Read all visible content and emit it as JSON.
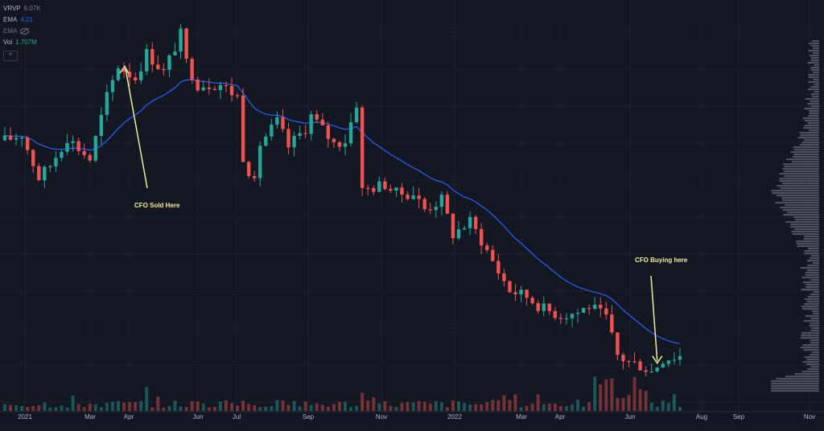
{
  "legend": [
    {
      "name": "VRVP",
      "value": "6.07K"
    },
    {
      "name": "EMA",
      "value": "4.21"
    },
    {
      "name": "EMA",
      "value": ""
    },
    {
      "name": "Vol",
      "value": "1.707M"
    }
  ],
  "colors": {
    "background": "#131722",
    "grid": "#1e222d",
    "up": "#26a69a",
    "down": "#ef5350",
    "ema": "#2962ff",
    "profile": "#9598a1",
    "annotation": "#f0ee9c"
  },
  "chart_data": {
    "type": "candlestick",
    "x_ticks": [
      "2021",
      "Mar",
      "Apr",
      "Jun",
      "Jul",
      "Sep",
      "Nov",
      "2022",
      "Mar",
      "Apr",
      "Jun",
      "Aug",
      "Sep",
      "Nov"
    ],
    "price_waypoints": [
      [
        0,
        74
      ],
      [
        3,
        76
      ],
      [
        6,
        62
      ],
      [
        8,
        66
      ],
      [
        11,
        75
      ],
      [
        15,
        68
      ],
      [
        18,
        88
      ],
      [
        20,
        98
      ],
      [
        23,
        94
      ],
      [
        25,
        102
      ],
      [
        28,
        96
      ],
      [
        31,
        108
      ],
      [
        32,
        99
      ],
      [
        34,
        92
      ],
      [
        38,
        92
      ],
      [
        41,
        88
      ],
      [
        42,
        69
      ],
      [
        44,
        60
      ],
      [
        45,
        73
      ],
      [
        48,
        80
      ],
      [
        50,
        72
      ],
      [
        53,
        78
      ],
      [
        54,
        82
      ],
      [
        58,
        73
      ],
      [
        60,
        74
      ],
      [
        62,
        86
      ],
      [
        63,
        58
      ],
      [
        67,
        60
      ],
      [
        69,
        57
      ],
      [
        72,
        57
      ],
      [
        74,
        52
      ],
      [
        77,
        55
      ],
      [
        79,
        44
      ],
      [
        82,
        48
      ],
      [
        84,
        42
      ],
      [
        87,
        32
      ],
      [
        89,
        26
      ],
      [
        92,
        24
      ],
      [
        95,
        20
      ],
      [
        98,
        18
      ],
      [
        101,
        19
      ],
      [
        103,
        21
      ],
      [
        106,
        17
      ],
      [
        108,
        5
      ],
      [
        110,
        3
      ],
      [
        112,
        2
      ],
      [
        114,
        0
      ],
      [
        116,
        4
      ],
      [
        119,
        5
      ]
    ],
    "candle_count": 120,
    "ema": {
      "period": 20
    },
    "volume_profile": "right side histogram",
    "annotations": [
      {
        "text": "CFO Sold Here",
        "target_candle": 21
      },
      {
        "text": "CFO Buying here",
        "target_candle": 115
      }
    ]
  }
}
